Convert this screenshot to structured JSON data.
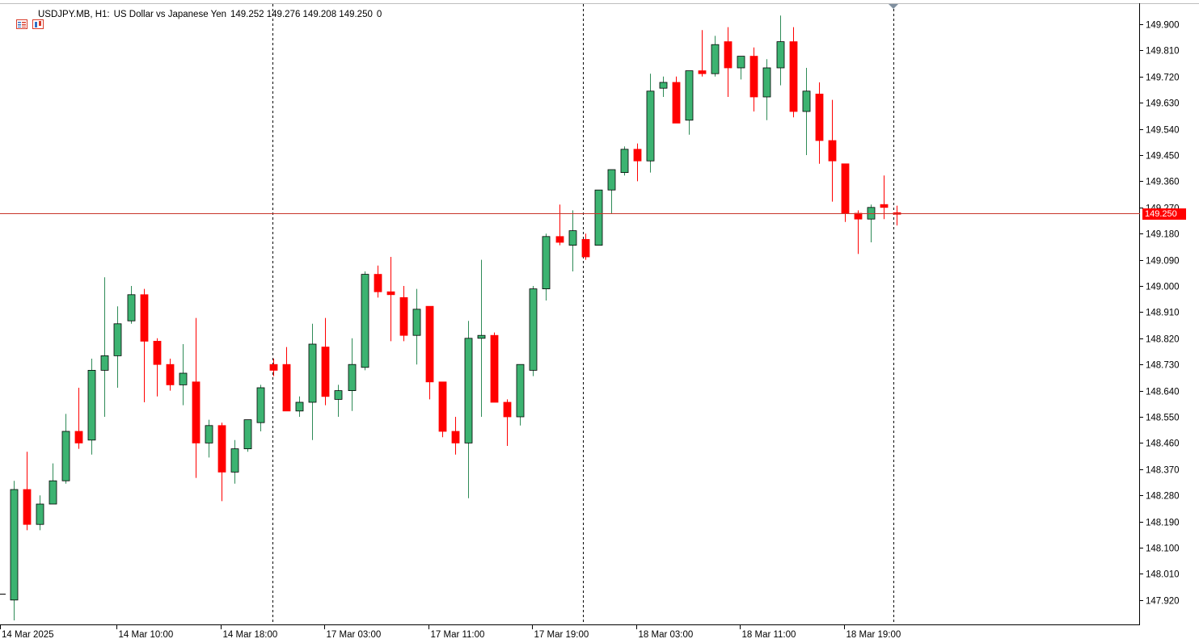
{
  "header": {
    "symbol": "USDJPY.MB, H1:",
    "description": "US Dollar vs Japanese Yen",
    "ohlc": "149.252 149.276 149.208 149.250",
    "volume": "0",
    "icon_1": "chart-list-icon",
    "icon_2": "chart-window-icon"
  },
  "colors": {
    "bull": "#3cb371",
    "bear": "#ff0000",
    "outline": "#000000",
    "current_price_line": "#c8352a",
    "grid": "#000000"
  },
  "current_price_label": "149.250",
  "chart_data": {
    "type": "candlestick",
    "timeframe": "H1",
    "y_ticks": [
      "149.900",
      "149.810",
      "149.720",
      "149.630",
      "149.540",
      "149.450",
      "149.360",
      "149.270",
      "149.180",
      "149.090",
      "149.000",
      "148.910",
      "148.820",
      "148.730",
      "148.640",
      "148.550",
      "148.460",
      "148.370",
      "148.280",
      "148.190",
      "148.100",
      "148.010",
      "147.920"
    ],
    "x_ticks": [
      "14 Mar 2025",
      "14 Mar 10:00",
      "14 Mar 18:00",
      "17 Mar 03:00",
      "17 Mar 11:00",
      "17 Mar 19:00",
      "18 Mar 03:00",
      "18 Mar 11:00",
      "18 Mar 19:00"
    ],
    "ylim": [
      147.86,
      149.97
    ],
    "current_price": 149.25,
    "candles": [
      {
        "o": 147.92,
        "h": 148.33,
        "l": 147.85,
        "c": 148.3
      },
      {
        "o": 148.3,
        "h": 148.43,
        "l": 148.16,
        "c": 148.18
      },
      {
        "o": 148.18,
        "h": 148.28,
        "l": 148.16,
        "c": 148.25
      },
      {
        "o": 148.25,
        "h": 148.39,
        "l": 148.25,
        "c": 148.33
      },
      {
        "o": 148.33,
        "h": 148.56,
        "l": 148.32,
        "c": 148.5
      },
      {
        "o": 148.5,
        "h": 148.65,
        "l": 148.44,
        "c": 148.46
      },
      {
        "o": 148.47,
        "h": 148.75,
        "l": 148.42,
        "c": 148.71
      },
      {
        "o": 148.71,
        "h": 149.03,
        "l": 148.55,
        "c": 148.76
      },
      {
        "o": 148.76,
        "h": 148.93,
        "l": 148.65,
        "c": 148.87
      },
      {
        "o": 148.88,
        "h": 149.0,
        "l": 148.87,
        "c": 148.97
      },
      {
        "o": 148.97,
        "h": 148.99,
        "l": 148.6,
        "c": 148.81
      },
      {
        "o": 148.81,
        "h": 148.82,
        "l": 148.62,
        "c": 148.73
      },
      {
        "o": 148.73,
        "h": 148.75,
        "l": 148.64,
        "c": 148.66
      },
      {
        "o": 148.66,
        "h": 148.8,
        "l": 148.59,
        "c": 148.7
      },
      {
        "o": 148.67,
        "h": 148.89,
        "l": 148.34,
        "c": 148.46
      },
      {
        "o": 148.46,
        "h": 148.54,
        "l": 148.41,
        "c": 148.52
      },
      {
        "o": 148.52,
        "h": 148.53,
        "l": 148.26,
        "c": 148.36
      },
      {
        "o": 148.36,
        "h": 148.47,
        "l": 148.32,
        "c": 148.44
      },
      {
        "o": 148.44,
        "h": 148.54,
        "l": 148.43,
        "c": 148.54
      },
      {
        "o": 148.53,
        "h": 148.66,
        "l": 148.5,
        "c": 148.65
      },
      {
        "o": 148.73,
        "h": 148.75,
        "l": 148.69,
        "c": 148.71
      },
      {
        "o": 148.73,
        "h": 148.79,
        "l": 148.57,
        "c": 148.57
      },
      {
        "o": 148.57,
        "h": 148.62,
        "l": 148.55,
        "c": 148.6
      },
      {
        "o": 148.6,
        "h": 148.87,
        "l": 148.47,
        "c": 148.8
      },
      {
        "o": 148.79,
        "h": 148.89,
        "l": 148.59,
        "c": 148.62
      },
      {
        "o": 148.61,
        "h": 148.66,
        "l": 148.55,
        "c": 148.64
      },
      {
        "o": 148.64,
        "h": 148.82,
        "l": 148.57,
        "c": 148.73
      },
      {
        "o": 148.72,
        "h": 149.05,
        "l": 148.71,
        "c": 149.04
      },
      {
        "o": 149.04,
        "h": 149.07,
        "l": 148.96,
        "c": 148.98
      },
      {
        "o": 148.98,
        "h": 149.1,
        "l": 148.81,
        "c": 148.97
      },
      {
        "o": 148.96,
        "h": 149.0,
        "l": 148.81,
        "c": 148.83
      },
      {
        "o": 148.83,
        "h": 148.99,
        "l": 148.73,
        "c": 148.92
      },
      {
        "o": 148.93,
        "h": 148.93,
        "l": 148.61,
        "c": 148.67
      },
      {
        "o": 148.67,
        "h": 148.67,
        "l": 148.48,
        "c": 148.5
      },
      {
        "o": 148.5,
        "h": 148.55,
        "l": 148.42,
        "c": 148.46
      },
      {
        "o": 148.46,
        "h": 148.88,
        "l": 148.27,
        "c": 148.82
      },
      {
        "o": 148.82,
        "h": 149.09,
        "l": 148.55,
        "c": 148.83
      },
      {
        "o": 148.83,
        "h": 148.84,
        "l": 148.62,
        "c": 148.6
      },
      {
        "o": 148.6,
        "h": 148.61,
        "l": 148.45,
        "c": 148.55
      },
      {
        "o": 148.55,
        "h": 148.73,
        "l": 148.52,
        "c": 148.73
      },
      {
        "o": 148.71,
        "h": 149.0,
        "l": 148.69,
        "c": 148.99
      },
      {
        "o": 148.99,
        "h": 149.18,
        "l": 148.95,
        "c": 149.17
      },
      {
        "o": 149.17,
        "h": 149.28,
        "l": 149.14,
        "c": 149.15
      },
      {
        "o": 149.14,
        "h": 149.26,
        "l": 149.05,
        "c": 149.19
      },
      {
        "o": 149.16,
        "h": 149.18,
        "l": 149.09,
        "c": 149.1
      },
      {
        "o": 149.14,
        "h": 149.33,
        "l": 149.14,
        "c": 149.33
      },
      {
        "o": 149.33,
        "h": 149.4,
        "l": 149.25,
        "c": 149.4
      },
      {
        "o": 149.39,
        "h": 149.48,
        "l": 149.38,
        "c": 149.47
      },
      {
        "o": 149.47,
        "h": 149.49,
        "l": 149.36,
        "c": 149.43
      },
      {
        "o": 149.43,
        "h": 149.73,
        "l": 149.39,
        "c": 149.67
      },
      {
        "o": 149.68,
        "h": 149.72,
        "l": 149.65,
        "c": 149.7
      },
      {
        "o": 149.7,
        "h": 149.72,
        "l": 149.56,
        "c": 149.56
      },
      {
        "o": 149.57,
        "h": 149.74,
        "l": 149.52,
        "c": 149.74
      },
      {
        "o": 149.74,
        "h": 149.88,
        "l": 149.72,
        "c": 149.73
      },
      {
        "o": 149.73,
        "h": 149.86,
        "l": 149.72,
        "c": 149.83
      },
      {
        "o": 149.84,
        "h": 149.89,
        "l": 149.65,
        "c": 149.75
      },
      {
        "o": 149.75,
        "h": 149.79,
        "l": 149.71,
        "c": 149.79
      },
      {
        "o": 149.79,
        "h": 149.82,
        "l": 149.6,
        "c": 149.65
      },
      {
        "o": 149.65,
        "h": 149.78,
        "l": 149.57,
        "c": 149.75
      },
      {
        "o": 149.75,
        "h": 149.93,
        "l": 149.69,
        "c": 149.84
      },
      {
        "o": 149.84,
        "h": 149.89,
        "l": 149.58,
        "c": 149.6
      },
      {
        "o": 149.6,
        "h": 149.75,
        "l": 149.45,
        "c": 149.67
      },
      {
        "o": 149.66,
        "h": 149.7,
        "l": 149.42,
        "c": 149.5
      },
      {
        "o": 149.5,
        "h": 149.64,
        "l": 149.29,
        "c": 149.43
      },
      {
        "o": 149.42,
        "h": 149.42,
        "l": 149.22,
        "c": 149.25
      },
      {
        "o": 149.25,
        "h": 149.26,
        "l": 149.11,
        "c": 149.23
      },
      {
        "o": 149.23,
        "h": 149.28,
        "l": 149.15,
        "c": 149.27
      },
      {
        "o": 149.28,
        "h": 149.38,
        "l": 149.23,
        "c": 149.27
      },
      {
        "o": 149.252,
        "h": 149.276,
        "l": 149.208,
        "c": 149.25
      }
    ]
  }
}
